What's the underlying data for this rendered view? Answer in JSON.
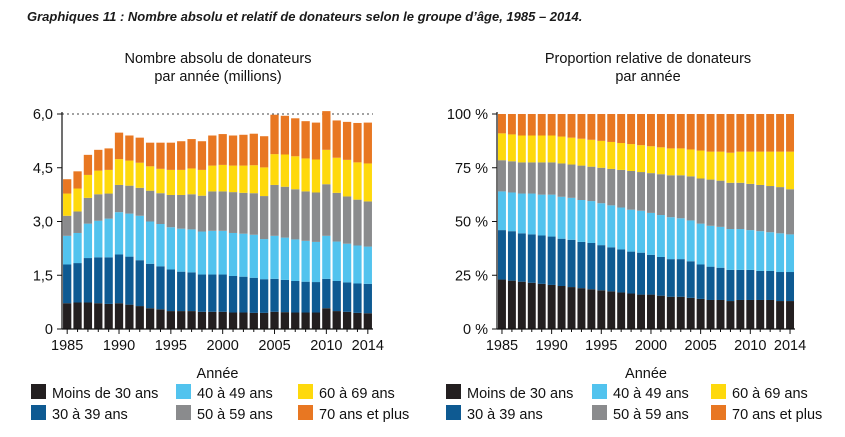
{
  "figure_title": "Graphiques 11 : Nombre absolu et relatif de donateurs selon le groupe d’âge, 1985 – 2014.",
  "colors": {
    "Moins de 30 ans": "#231f20",
    "30 à 39 ans": "#0e5a92",
    "40 à 49 ans": "#52c3ee",
    "50 à 59 ans": "#8a8b8d",
    "60 à 69 ans": "#fed90c",
    "70 ans et plus": "#e87722"
  },
  "chart_data": [
    {
      "type": "bar",
      "stacked": true,
      "title": "Nombre absolu de donateurs par année (millions)",
      "title_lines": [
        "Nombre absolu de donateurs",
        "par année (millions)"
      ],
      "xlabel": "Année",
      "ylabel": "",
      "ylim": [
        0,
        6.0
      ],
      "yticks": [
        0,
        1.5,
        3.0,
        4.5,
        6.0
      ],
      "ytick_labels": [
        "0",
        "1,5",
        "3,0",
        "4,5",
        "6,0"
      ],
      "reference_line": 6.0,
      "x": [
        1985,
        1986,
        1987,
        1988,
        1989,
        1990,
        1991,
        1992,
        1993,
        1994,
        1995,
        1996,
        1997,
        1998,
        1999,
        2000,
        2001,
        2002,
        2003,
        2004,
        2005,
        2006,
        2007,
        2008,
        2009,
        2010,
        2011,
        2012,
        2013,
        2014
      ],
      "xtick_labels": [
        "1985",
        "1990",
        "1995",
        "2000",
        "2005",
        "2010",
        "2014"
      ],
      "series": [
        {
          "name": "Moins de 30 ans",
          "values": [
            0.72,
            0.74,
            0.74,
            0.72,
            0.7,
            0.72,
            0.68,
            0.64,
            0.58,
            0.55,
            0.5,
            0.5,
            0.5,
            0.48,
            0.48,
            0.48,
            0.46,
            0.46,
            0.45,
            0.45,
            0.48,
            0.47,
            0.46,
            0.46,
            0.46,
            0.58,
            0.5,
            0.48,
            0.45,
            0.44
          ]
        },
        {
          "name": "30 à 39 ans",
          "values": [
            1.08,
            1.1,
            1.24,
            1.28,
            1.3,
            1.36,
            1.34,
            1.28,
            1.24,
            1.2,
            1.16,
            1.1,
            1.08,
            1.04,
            1.04,
            1.04,
            1.02,
            1.0,
            0.98,
            0.94,
            0.92,
            0.9,
            0.88,
            0.86,
            0.85,
            0.82,
            0.84,
            0.82,
            0.82,
            0.82
          ]
        },
        {
          "name": "40 à 49 ans",
          "values": [
            0.8,
            0.84,
            0.96,
            1.02,
            1.08,
            1.18,
            1.2,
            1.24,
            1.18,
            1.18,
            1.18,
            1.2,
            1.2,
            1.2,
            1.22,
            1.22,
            1.2,
            1.2,
            1.2,
            1.12,
            1.2,
            1.18,
            1.16,
            1.14,
            1.12,
            1.2,
            1.1,
            1.08,
            1.06,
            1.04
          ]
        },
        {
          "name": "50 à 59 ans",
          "values": [
            0.56,
            0.6,
            0.72,
            0.74,
            0.7,
            0.76,
            0.78,
            0.78,
            0.86,
            0.86,
            0.9,
            0.94,
            0.98,
            1.0,
            1.1,
            1.1,
            1.14,
            1.14,
            1.16,
            1.2,
            1.42,
            1.42,
            1.4,
            1.38,
            1.38,
            1.44,
            1.36,
            1.32,
            1.28,
            1.26
          ]
        },
        {
          "name": "60 à 69 ans",
          "values": [
            0.62,
            0.64,
            0.64,
            0.66,
            0.66,
            0.72,
            0.7,
            0.7,
            0.68,
            0.68,
            0.7,
            0.7,
            0.72,
            0.72,
            0.72,
            0.74,
            0.74,
            0.76,
            0.78,
            0.8,
            0.86,
            0.9,
            0.92,
            0.92,
            0.92,
            0.96,
            0.98,
            1.02,
            1.04,
            1.06
          ]
        },
        {
          "name": "70 ans et plus",
          "values": [
            0.4,
            0.48,
            0.56,
            0.58,
            0.6,
            0.74,
            0.7,
            0.7,
            0.66,
            0.73,
            0.76,
            0.8,
            0.82,
            0.8,
            0.84,
            0.86,
            0.84,
            0.86,
            0.88,
            0.87,
            1.1,
            1.08,
            1.06,
            1.04,
            1.03,
            1.08,
            1.04,
            1.06,
            1.1,
            1.14
          ]
        }
      ]
    },
    {
      "type": "bar",
      "stacked": true,
      "title": "Proportion relative de donateurs par année",
      "title_lines": [
        "Proportion relative de donateurs",
        "par année"
      ],
      "xlabel": "Année",
      "ylabel": "",
      "ylim": [
        0,
        100
      ],
      "yticks": [
        0,
        25,
        50,
        75,
        100
      ],
      "ytick_labels": [
        "0 %",
        "25 %",
        "50 %",
        "75 %",
        "100 %"
      ],
      "x": [
        1985,
        1986,
        1987,
        1988,
        1989,
        1990,
        1991,
        1992,
        1993,
        1994,
        1995,
        1996,
        1997,
        1998,
        1999,
        2000,
        2001,
        2002,
        2003,
        2004,
        2005,
        2006,
        2007,
        2008,
        2009,
        2010,
        2011,
        2012,
        2013,
        2014
      ],
      "xtick_labels": [
        "1985",
        "1990",
        "1995",
        "2000",
        "2005",
        "2010",
        "2014"
      ],
      "series": [
        {
          "name": "Moins de 30 ans",
          "values": [
            23,
            22.5,
            22,
            21.5,
            21,
            20.5,
            20,
            19.5,
            19,
            18.5,
            18,
            17.5,
            17,
            16.5,
            16,
            16,
            15.5,
            15,
            15,
            14.5,
            14,
            13.5,
            13.5,
            13,
            13.5,
            13.5,
            13.5,
            13.5,
            13,
            13
          ]
        },
        {
          "name": "30 à 39 ans",
          "values": [
            23,
            23,
            22.5,
            22.5,
            22.5,
            22.5,
            22,
            22,
            21.5,
            21.5,
            21,
            20.5,
            20,
            19.5,
            19.5,
            18.5,
            18,
            17.5,
            17.5,
            17,
            16,
            15.5,
            15,
            14.5,
            14,
            14,
            13.5,
            13.5,
            13.5,
            13.5
          ]
        },
        {
          "name": "40 à 49 ans",
          "values": [
            18,
            18,
            18.5,
            19,
            19,
            19.5,
            19.5,
            19.5,
            19.5,
            19.5,
            19.5,
            19.5,
            19.5,
            19.5,
            19.5,
            19.5,
            19.5,
            19.5,
            19,
            19,
            19,
            19,
            19,
            19,
            19,
            18.5,
            18.5,
            18,
            18,
            17.5
          ]
        },
        {
          "name": "50 à 59 ans",
          "values": [
            14.5,
            14.5,
            14.5,
            14.5,
            15,
            15,
            15.5,
            15.5,
            16,
            16,
            16.5,
            17,
            17.5,
            18,
            18,
            18.5,
            19,
            19.5,
            20,
            20.5,
            21,
            21.5,
            21.5,
            21.5,
            21.5,
            21.5,
            21.5,
            21.5,
            21.5,
            21
          ]
        },
        {
          "name": "60 à 69 ans",
          "values": [
            12.5,
            12.5,
            12.5,
            12.5,
            12.5,
            12.5,
            12.5,
            12.5,
            12.5,
            12.5,
            12.5,
            12.5,
            12.5,
            12.5,
            12.5,
            12.5,
            12.5,
            12.5,
            12.5,
            12.5,
            13,
            13,
            13.5,
            14,
            14.5,
            15,
            15.5,
            16,
            16.5,
            17.5
          ]
        },
        {
          "name": "70 ans et plus",
          "values": [
            9,
            9.5,
            10,
            10,
            10,
            10,
            10.5,
            11,
            11.5,
            12,
            12.5,
            13,
            13.5,
            14,
            14.5,
            15,
            15.5,
            16,
            16,
            16.5,
            17,
            17.5,
            17.5,
            18,
            17.5,
            17.5,
            17.5,
            17.5,
            17.5,
            17.5
          ]
        }
      ]
    }
  ]
}
